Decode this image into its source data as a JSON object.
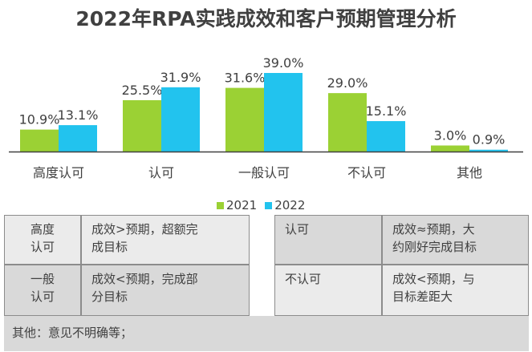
{
  "chart_data": {
    "type": "bar",
    "title": "2022年RPA实践成效和客户预期管理分析",
    "categories": [
      "高度认可",
      "认可",
      "一般认可",
      "不认可",
      "其他"
    ],
    "series": [
      {
        "name": "2021",
        "values": [
          10.9,
          25.5,
          31.6,
          29.0,
          3.0
        ],
        "labels": [
          "10.9%",
          "25.5%",
          "31.6%",
          "29.0%",
          "3.0%"
        ],
        "color": "#9bd134"
      },
      {
        "name": "2022",
        "values": [
          13.1,
          31.9,
          39.0,
          15.1,
          0.9
        ],
        "labels": [
          "13.1%",
          "31.9%",
          "39.0%",
          "15.1%",
          "0.9%"
        ],
        "color": "#22c3ee"
      }
    ],
    "ylim": [
      0,
      40
    ],
    "grid": false,
    "legend_position": "bottom"
  },
  "table": {
    "rows": [
      {
        "left_label": "高度\n认可",
        "left_desc": "成效>预期，超额完\n成目标",
        "right_label": "认可",
        "right_desc": "成效≈预期，大\n约刚好完成目标"
      },
      {
        "left_label": "一般\n认可",
        "left_desc": "成效<预期，完成部\n分目标",
        "right_label": "不认可",
        "right_desc": "成效<预期，与\n目标差距大"
      }
    ],
    "footer": "其他：意见不明确等；"
  },
  "colors": {
    "axis": "#404040",
    "text": "#404040"
  }
}
